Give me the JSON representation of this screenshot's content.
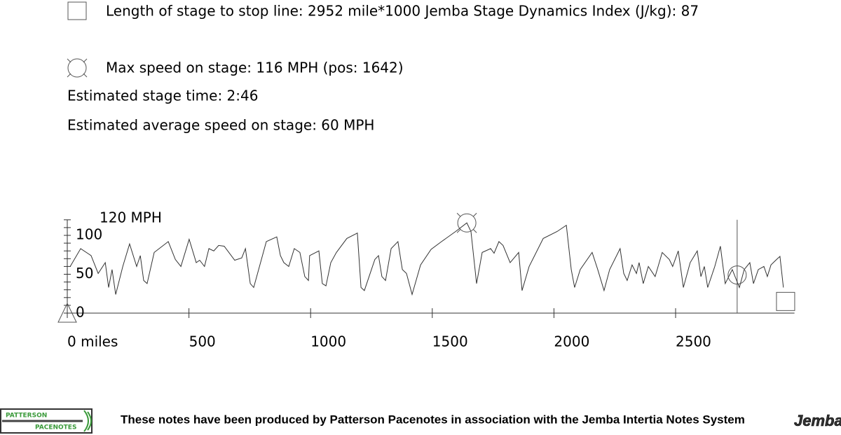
{
  "header": {
    "stop_line": "Length of stage to stop line: 2952 mile*1000 Jemba Stage Dynamics Index (J/kg): 87",
    "max_speed": "Max speed on stage: 116 MPH (pos: 1642)",
    "stage_time": "Estimated stage time: 2:46",
    "avg_speed": "Estimated average speed on stage: 60 MPH"
  },
  "chart_data": {
    "type": "line",
    "ylabel": "120 MPH",
    "x": [
      12,
      55,
      98,
      127,
      156,
      170,
      184,
      199,
      228,
      256,
      285,
      300,
      314,
      328,
      357,
      415,
      444,
      467,
      501,
      530,
      544,
      564,
      582,
      602,
      622,
      645,
      688,
      717,
      732,
      752,
      766,
      818,
      861,
      876,
      890,
      910,
      933,
      956,
      976,
      991,
      996,
      1034,
      1048,
      1063,
      1083,
      1106,
      1149,
      1192,
      1207,
      1221,
      1250,
      1264,
      1279,
      1293,
      1308,
      1331,
      1359,
      1377,
      1394,
      1417,
      1452,
      1495,
      1538,
      1596,
      1642,
      1659,
      1682,
      1705,
      1740,
      1754,
      1774,
      1791,
      1820,
      1855,
      1869,
      1898,
      1956,
      2013,
      2051,
      2071,
      2085,
      2108,
      2157,
      2180,
      2206,
      2229,
      2272,
      2287,
      2301,
      2321,
      2339,
      2350,
      2367,
      2388,
      2416,
      2445,
      2474,
      2488,
      2511,
      2532,
      2560,
      2589,
      2604,
      2618,
      2632,
      2661,
      2684,
      2704,
      2733,
      2762,
      2782,
      2805,
      2820,
      2840,
      2863,
      2877,
      2892,
      2915,
      2929,
      2943
    ],
    "series": [
      {
        "color": "#333333",
        "values": [
          60,
          83,
          74,
          51,
          65,
          33,
          56,
          24,
          60,
          89,
          60,
          74,
          42,
          38,
          78,
          92,
          69,
          60,
          95,
          65,
          68,
          60,
          83,
          80,
          87,
          86,
          68,
          71,
          83,
          38,
          33,
          92,
          98,
          74,
          65,
          60,
          83,
          78,
          47,
          42,
          74,
          80,
          38,
          35,
          65,
          78,
          96,
          103,
          33,
          29,
          56,
          69,
          74,
          47,
          42,
          83,
          92,
          56,
          51,
          24,
          62,
          82,
          92,
          105,
          116,
          105,
          38,
          78,
          83,
          77,
          92,
          87,
          65,
          78,
          29,
          60,
          96,
          105,
          113,
          56,
          33,
          56,
          78,
          56,
          29,
          56,
          83,
          51,
          42,
          62,
          51,
          65,
          38,
          60,
          47,
          78,
          69,
          60,
          80,
          33,
          65,
          80,
          47,
          60,
          33,
          60,
          86,
          38,
          56,
          33,
          56,
          65,
          38,
          56,
          60,
          47,
          62,
          69,
          73,
          33
        ]
      }
    ],
    "xlim": [
      0,
      3000
    ],
    "ylim": [
      0,
      120
    ],
    "xticks": [
      {
        "value": 0,
        "label": "0 miles"
      },
      500,
      1000,
      1500,
      2000,
      2500
    ],
    "yticks": [
      0,
      50,
      100
    ],
    "y_minor_ticks": [
      0,
      10,
      20,
      30,
      40,
      50,
      60,
      70,
      80,
      90,
      100,
      110,
      120
    ],
    "markers": [
      {
        "shape": "triangle",
        "x": 0,
        "y": 0
      },
      {
        "shape": "target",
        "x": 1642,
        "y": 116
      },
      {
        "shape": "circle",
        "x": 2753,
        "y": 49
      },
      {
        "shape": "square",
        "x": 2952,
        "y": 15
      }
    ],
    "cursor_x": 2753
  },
  "footer": {
    "text": "These notes have been produced by Patterson Pacenotes in association with the Jemba Intertia Notes System",
    "logo_top": "PATTERSON",
    "logo_bottom": "PACENOTES",
    "brand": "Jemba"
  }
}
